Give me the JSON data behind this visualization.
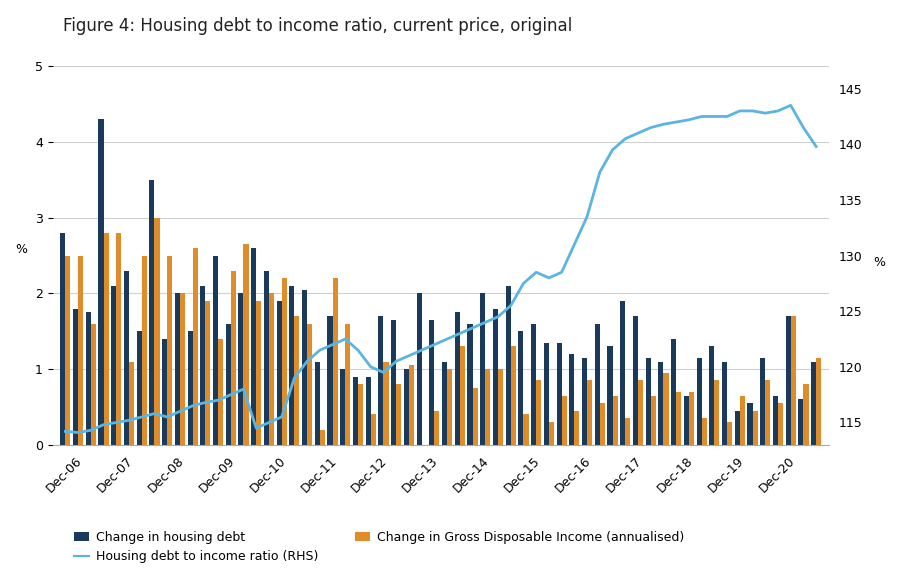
{
  "title": "Figure 4: Housing debt to income ratio, current price, original",
  "ylabel_left": "%",
  "ylabel_right": "%",
  "ylim_left": [
    0,
    5
  ],
  "ylim_right": [
    113,
    147
  ],
  "yticks_left": [
    0,
    1,
    2,
    3,
    4,
    5
  ],
  "yticks_right": [
    115,
    120,
    125,
    130,
    135,
    140,
    145
  ],
  "categories": [
    "Dec-06",
    "Dec-07",
    "Dec-08",
    "Dec-09",
    "Dec-10",
    "Dec-11",
    "Dec-12",
    "Dec-13",
    "Dec-14",
    "Dec-15",
    "Dec-16",
    "Dec-17",
    "Dec-18",
    "Dec-19",
    "Dec-20"
  ],
  "n_quarters": 4,
  "housing_debt": [
    2.8,
    1.8,
    1.75,
    4.3,
    2.1,
    2.3,
    1.5,
    3.5,
    1.4,
    2.0,
    1.5,
    2.1,
    2.5,
    1.6,
    2.0,
    2.6,
    2.3,
    1.9,
    2.1,
    2.05,
    1.1,
    1.7,
    1.0,
    0.9,
    0.9,
    1.7,
    1.65,
    1.0,
    2.0,
    1.65,
    1.1,
    1.75,
    1.6,
    2.0,
    1.8,
    2.1,
    1.5,
    1.6,
    1.35,
    1.35,
    1.2,
    1.15,
    1.6,
    1.3,
    1.9,
    1.7,
    1.15,
    1.1,
    1.4,
    0.65,
    1.15,
    1.3,
    1.1,
    0.45,
    0.55,
    1.15,
    0.65,
    1.7,
    0.6,
    1.1
  ],
  "gross_income": [
    2.5,
    2.5,
    1.6,
    2.8,
    2.8,
    1.1,
    2.5,
    3.0,
    2.5,
    2.0,
    2.6,
    1.9,
    1.4,
    2.3,
    2.65,
    1.9,
    2.0,
    2.2,
    1.7,
    1.6,
    0.2,
    2.2,
    1.6,
    0.8,
    0.4,
    1.1,
    0.8,
    1.05,
    0.0,
    0.45,
    1.0,
    1.3,
    0.75,
    1.0,
    1.0,
    1.3,
    0.4,
    0.85,
    0.3,
    0.65,
    0.45,
    0.85,
    0.55,
    0.65,
    0.35,
    0.85,
    0.65,
    0.95,
    0.7,
    0.7,
    0.35,
    0.85,
    0.3,
    0.65,
    0.45,
    0.85,
    0.55,
    1.7,
    0.8,
    1.15
  ],
  "ratio_rhs": [
    114.2,
    114.1,
    114.3,
    114.8,
    115.0,
    115.2,
    115.5,
    115.8,
    115.5,
    116.0,
    116.5,
    116.8,
    117.0,
    117.5,
    118.0,
    114.5,
    115.0,
    115.5,
    119.0,
    120.5,
    121.5,
    122.0,
    122.5,
    121.5,
    120.0,
    119.5,
    120.5,
    121.0,
    121.5,
    122.0,
    122.5,
    123.0,
    123.5,
    124.0,
    124.5,
    125.5,
    127.5,
    128.5,
    128.0,
    128.5,
    131.0,
    133.5,
    137.5,
    139.5,
    140.5,
    141.0,
    141.5,
    141.8,
    142.0,
    142.2,
    142.5,
    142.5,
    142.5,
    143.0,
    143.0,
    142.8,
    143.0,
    143.5,
    141.5,
    139.8
  ],
  "color_debt": "#1a3a5c",
  "color_income": "#e08c2a",
  "color_ratio": "#5bb5e0",
  "background_color": "#ffffff",
  "grid_color": "#d0d0d0",
  "title_fontsize": 12,
  "axis_fontsize": 9,
  "tick_fontsize": 9
}
